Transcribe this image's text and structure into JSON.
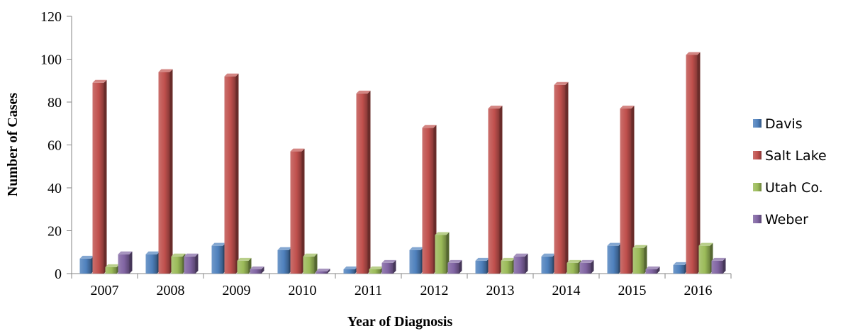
{
  "chart_data": {
    "type": "bar",
    "style": "3d-clustered-column",
    "title": "",
    "xlabel": "Year of Diagnosis",
    "ylabel": "Number of Cases",
    "ylim": [
      0,
      120
    ],
    "yticks": [
      0,
      20,
      40,
      60,
      80,
      100,
      120
    ],
    "grid": false,
    "legend_position": "right",
    "categories": [
      "2007",
      "2008",
      "2009",
      "2010",
      "2011",
      "2012",
      "2013",
      "2014",
      "2015",
      "2016"
    ],
    "series": [
      {
        "name": "Davis",
        "color": "#4f81bd",
        "values": [
          7,
          9,
          13,
          11,
          2,
          11,
          6,
          8,
          13,
          4
        ]
      },
      {
        "name": "Salt Lake",
        "color": "#c0504d",
        "values": [
          89,
          94,
          92,
          57,
          84,
          68,
          77,
          88,
          77,
          102
        ]
      },
      {
        "name": "Utah Co.",
        "color": "#9bbb59",
        "values": [
          3,
          8,
          6,
          8,
          2,
          18,
          6,
          5,
          12,
          13
        ]
      },
      {
        "name": "Weber",
        "color": "#8064a2",
        "values": [
          9,
          8,
          2,
          1,
          5,
          5,
          8,
          5,
          2,
          6
        ]
      }
    ]
  }
}
